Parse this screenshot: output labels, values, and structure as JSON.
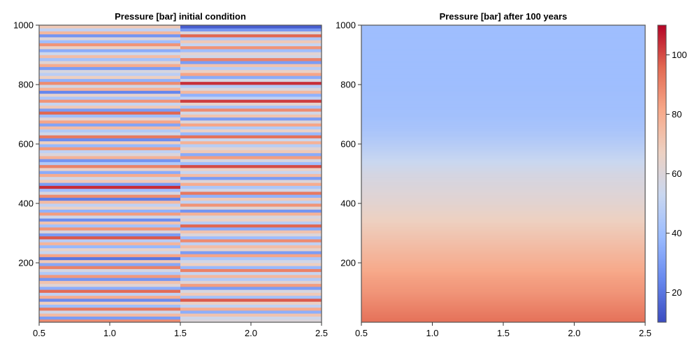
{
  "chart_data": [
    {
      "type": "heatmap",
      "title": "Pressure [bar] initial condition",
      "xlabel": "",
      "ylabel": "",
      "xlim": [
        0.5,
        2.5
      ],
      "ylim": [
        0,
        1000
      ],
      "x_ticks": [
        0.5,
        1.0,
        1.5,
        2.0,
        2.5
      ],
      "x_tick_labels": [
        "0.5",
        "1.0",
        "1.5",
        "2.0",
        "2.5"
      ],
      "y_ticks": [
        200,
        400,
        600,
        800,
        1000
      ],
      "y_tick_labels": [
        "200",
        "400",
        "600",
        "800",
        "1000"
      ],
      "grid": false,
      "columns": [
        {
          "x_range": [
            0.5,
            1.5
          ],
          "y_bin": 10,
          "values": [
            88,
            30,
            75,
            55,
            92,
            40,
            68,
            25,
            80,
            50,
            95,
            35,
            62,
            72,
            28,
            85,
            45,
            58,
            90,
            33,
            70,
            20,
            82,
            52,
            64,
            38,
            77,
            48,
            98,
            30,
            60,
            86,
            42,
            72,
            26,
            55,
            84,
            36,
            66,
            50,
            75,
            22,
            88,
            58,
            40,
            104,
            30,
            70,
            56,
            80,
            34,
            65,
            90,
            45,
            28,
            78,
            60,
            50,
            85,
            38,
            68,
            26,
            92,
            55,
            46,
            74,
            32,
            82,
            62,
            40,
            96,
            30,
            70,
            52,
            86,
            44,
            64,
            24,
            78,
            56,
            88,
            36,
            68,
            48,
            58,
            30,
            80,
            62,
            42,
            74,
            54,
            34,
            66,
            86,
            40,
            60,
            28,
            76,
            50,
            70
          ]
        },
        {
          "x_range": [
            1.5,
            2.5
          ],
          "y_bin": 10,
          "values": [
            60,
            55,
            72,
            35,
            80,
            50,
            66,
            98,
            42,
            70,
            58,
            30,
            84,
            62,
            46,
            76,
            52,
            90,
            38,
            68,
            56,
            44,
            82,
            30,
            64,
            74,
            50,
            88,
            40,
            60,
            72,
            34,
            96,
            48,
            66,
            58,
            78,
            28,
            62,
            86,
            50,
            70,
            36,
            92,
            56,
            44,
            80,
            60,
            30,
            74,
            52,
            66,
            100,
            40,
            58,
            84,
            34,
            70,
            62,
            48,
            78,
            54,
            94,
            38,
            66,
            46,
            82,
            60,
            30,
            72,
            56,
            88,
            42,
            64,
            102,
            50,
            36,
            76,
            60,
            46,
            104,
            58,
            34,
            82,
            66,
            48,
            72,
            30,
            90,
            56,
            62,
            40,
            86,
            52,
            70,
            44,
            96,
            60,
            28,
            14
          ]
        }
      ]
    },
    {
      "type": "heatmap",
      "title": "Pressure [bar] after 100 years",
      "xlabel": "",
      "ylabel": "",
      "xlim": [
        0.5,
        2.5
      ],
      "ylim": [
        0,
        1000
      ],
      "x_ticks": [
        0.5,
        1.0,
        1.5,
        2.0,
        2.5
      ],
      "x_tick_labels": [
        "0.5",
        "1.0",
        "1.5",
        "2.0",
        "2.5"
      ],
      "y_ticks": [
        200,
        400,
        600,
        800,
        1000
      ],
      "y_tick_labels": [
        "200",
        "400",
        "600",
        "800",
        "1000"
      ],
      "grid": false,
      "profile_depth": [
        0,
        50,
        100,
        150,
        200,
        250,
        300,
        350,
        400,
        450,
        500,
        550,
        600,
        650,
        700,
        800,
        900,
        1000
      ],
      "profile_values": [
        94,
        90,
        86,
        83,
        79,
        75,
        71,
        67,
        63,
        60,
        57,
        52,
        47,
        43,
        41,
        40,
        40,
        40
      ]
    }
  ],
  "colorbar": {
    "label": "",
    "range": [
      10,
      110
    ],
    "ticks": [
      20,
      40,
      60,
      80,
      100
    ],
    "tick_labels": [
      "20",
      "40",
      "60",
      "80",
      "100"
    ],
    "colormap": "coolwarm",
    "colormap_stops": [
      "#3b4cc0",
      "#6788ee",
      "#9abbff",
      "#c9d7f0",
      "#edd1c2",
      "#f7a889",
      "#e26952",
      "#b40426"
    ]
  }
}
